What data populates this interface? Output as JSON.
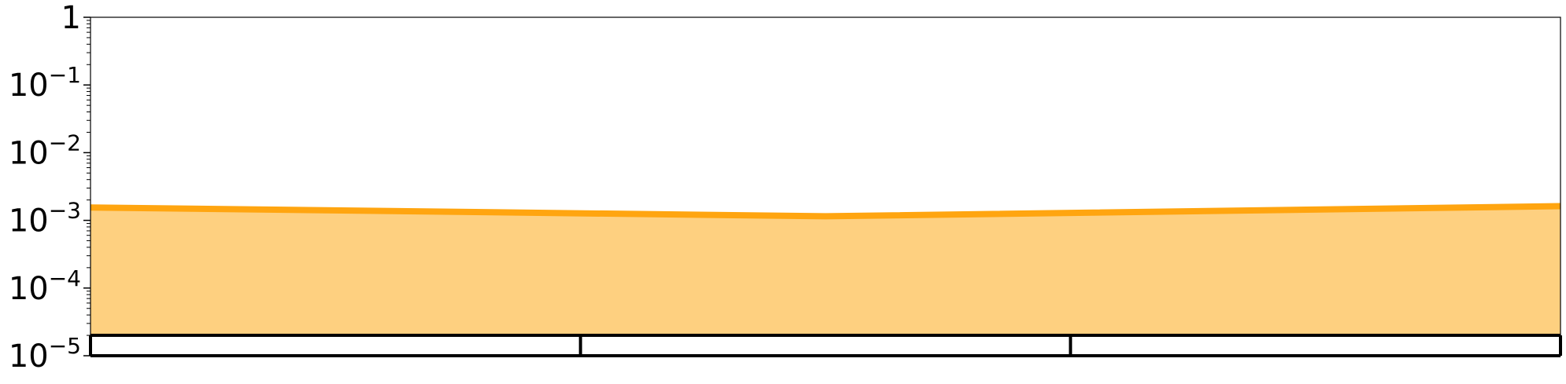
{
  "chart_data": {
    "type": "area",
    "title": "",
    "xlabel": "",
    "ylabel": "",
    "yscale": "log",
    "ylim": [
      1e-05,
      1
    ],
    "y_ticks": [
      {
        "value": 1,
        "base": "1",
        "exp": ""
      },
      {
        "value": 0.1,
        "base": "10",
        "exp": "−1"
      },
      {
        "value": 0.01,
        "base": "10",
        "exp": "−2"
      },
      {
        "value": 0.001,
        "base": "10",
        "exp": "−3"
      },
      {
        "value": 0.0001,
        "base": "10",
        "exp": "−4"
      },
      {
        "value": 1e-05,
        "base": "10",
        "exp": "−5"
      }
    ],
    "xlim": [
      0,
      6
    ],
    "series": [
      {
        "x": [
          0,
          3,
          6
        ],
        "values": [
          0.00155,
          0.00115,
          0.00162
        ],
        "color": "#ffa510",
        "fill_color": "#fed080"
      }
    ],
    "segment_bar": {
      "y_range": [
        1e-05,
        2e-05
      ],
      "boundaries": [
        0,
        2,
        4,
        6
      ],
      "color": "#000000"
    },
    "grid": false,
    "legend": "none"
  }
}
